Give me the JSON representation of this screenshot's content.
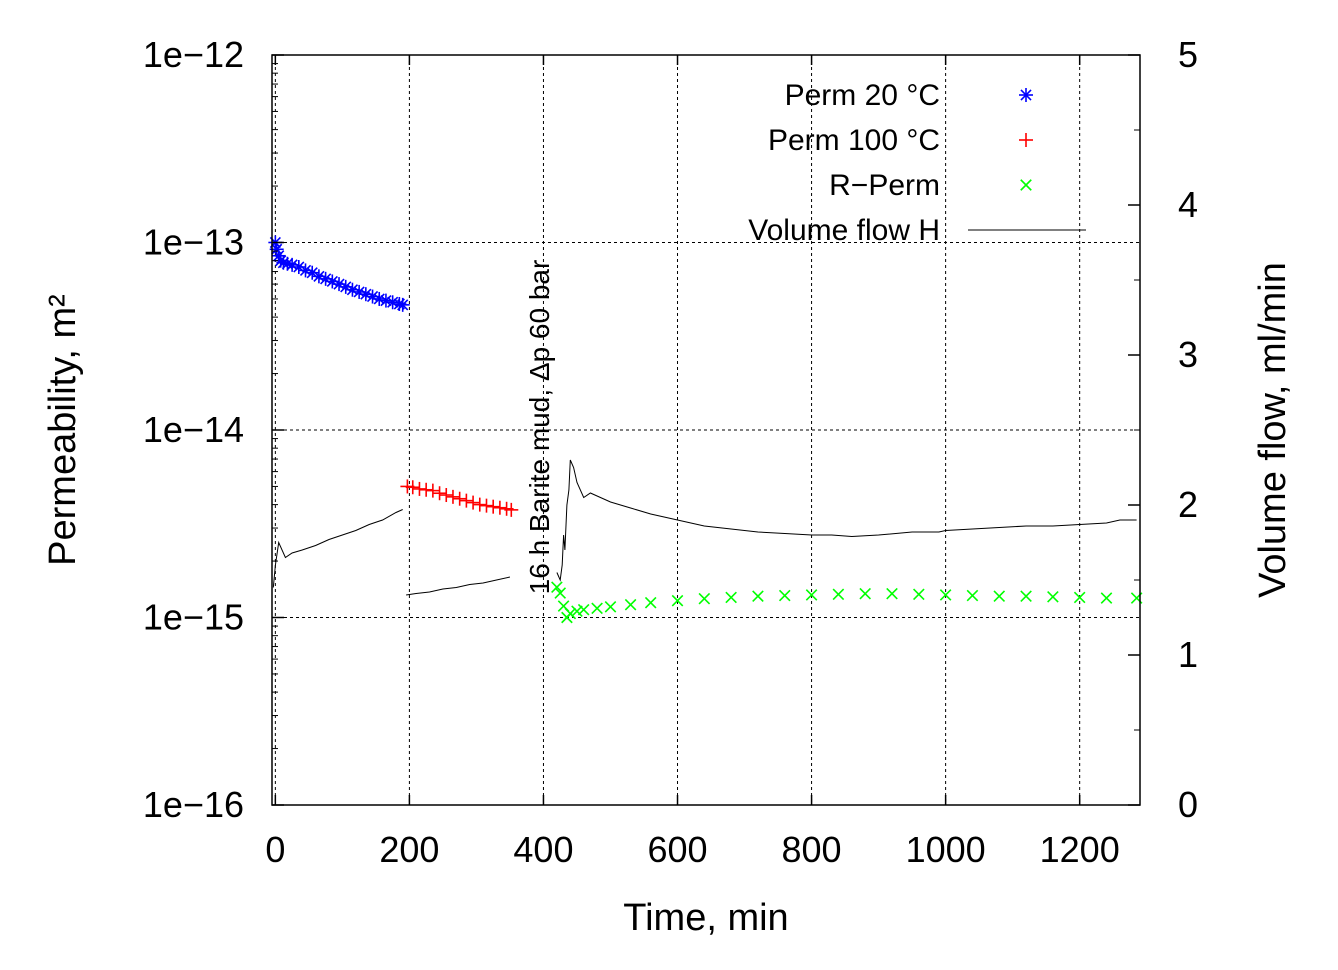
{
  "chart_data": {
    "type": "scatter",
    "xlabel": "Time, min",
    "ylabel": "Permeability, m²",
    "y2label": "Volume flow, ml/min",
    "xlim": [
      -5,
      1290
    ],
    "ylim_log10": [
      -16,
      -12
    ],
    "y2lim": [
      0,
      5
    ],
    "x_ticks": [
      0,
      200,
      400,
      600,
      800,
      1000,
      1200
    ],
    "x_tick_labels": [
      "0",
      "200",
      "400",
      "600",
      "800",
      "1000",
      "1200"
    ],
    "y_ticks_log10": [
      -16,
      -15,
      -14,
      -13,
      -12
    ],
    "y_tick_labels": [
      "1e−16",
      "1e−15",
      "1e−14",
      "1e−13",
      "1e−12"
    ],
    "y2_ticks": [
      0,
      1,
      2,
      3,
      4,
      5
    ],
    "y2_tick_labels": [
      "0",
      "1",
      "2",
      "3",
      "4",
      "5"
    ],
    "grid": true,
    "legend_position": "top-right",
    "annotation": "16 h Barite mud, Δp 60 bar",
    "series": [
      {
        "name": "Perm 20 °C",
        "marker": "asterisk",
        "color": "#0000ff",
        "axis": "left",
        "x": [
          0,
          2,
          5,
          8,
          12,
          18,
          25,
          35,
          45,
          55,
          65,
          75,
          85,
          95,
          105,
          115,
          125,
          135,
          145,
          155,
          165,
          175,
          185,
          190
        ],
        "y": [
          1e-13,
          9.2e-14,
          8.5e-14,
          8e-14,
          7.8e-14,
          7.7e-14,
          7.6e-14,
          7.4e-14,
          7.1e-14,
          6.9e-14,
          6.6e-14,
          6.4e-14,
          6.2e-14,
          6e-14,
          5.8e-14,
          5.6e-14,
          5.45e-14,
          5.3e-14,
          5.15e-14,
          5e-14,
          4.9e-14,
          4.8e-14,
          4.7e-14,
          4.65e-14
        ]
      },
      {
        "name": "Perm 100 °C",
        "marker": "plus",
        "color": "#ff0000",
        "axis": "left",
        "x": [
          197,
          205,
          215,
          225,
          235,
          245,
          255,
          265,
          275,
          285,
          295,
          305,
          315,
          325,
          335,
          345,
          352
        ],
        "y": [
          5e-15,
          4.95e-15,
          4.85e-15,
          4.8e-15,
          4.75e-15,
          4.6e-15,
          4.5e-15,
          4.4e-15,
          4.3e-15,
          4.2e-15,
          4.1e-15,
          4e-15,
          3.95e-15,
          3.9e-15,
          3.85e-15,
          3.8e-15,
          3.75e-15
        ]
      },
      {
        "name": "R−Perm",
        "marker": "cross",
        "color": "#00ff00",
        "axis": "left",
        "x": [
          420,
          425,
          430,
          435,
          440,
          450,
          460,
          480,
          500,
          530,
          560,
          600,
          640,
          680,
          720,
          760,
          800,
          840,
          880,
          920,
          960,
          1000,
          1040,
          1080,
          1120,
          1160,
          1200,
          1240,
          1285
        ],
        "y": [
          1.45e-15,
          1.35e-15,
          1.15e-15,
          1e-15,
          1.05e-15,
          1.08e-15,
          1.1e-15,
          1.12e-15,
          1.14e-15,
          1.17e-15,
          1.2e-15,
          1.23e-15,
          1.26e-15,
          1.28e-15,
          1.3e-15,
          1.31e-15,
          1.32e-15,
          1.33e-15,
          1.34e-15,
          1.34e-15,
          1.33e-15,
          1.32e-15,
          1.31e-15,
          1.3e-15,
          1.3e-15,
          1.29e-15,
          1.28e-15,
          1.27e-15,
          1.27e-15
        ]
      },
      {
        "name": "Volume flow H",
        "marker": "line",
        "color": "#000000",
        "axis": "right",
        "segments": [
          {
            "x": [
              -3,
              0,
              5,
              15,
              25,
              40,
              60,
              80,
              100,
              120,
              140,
              160,
              180,
              190
            ],
            "y": [
              1.45,
              1.6,
              1.75,
              1.65,
              1.68,
              1.7,
              1.73,
              1.77,
              1.8,
              1.83,
              1.87,
              1.9,
              1.95,
              1.97
            ]
          },
          {
            "x": [
              195,
              210,
              230,
              250,
              270,
              290,
              310,
              330,
              350
            ],
            "y": [
              1.4,
              1.41,
              1.42,
              1.44,
              1.45,
              1.47,
              1.48,
              1.5,
              1.52
            ]
          },
          {
            "x": [
              420,
              425,
              428,
              430,
              432,
              435,
              438,
              440,
              445,
              450,
              460,
              470,
              480,
              500,
              530,
              560,
              600,
              640,
              680,
              720,
              760,
              800,
              830,
              860,
              900,
              950,
              990,
              1000,
              1040,
              1080,
              1120,
              1160,
              1200,
              1240,
              1260,
              1285
            ],
            "y": [
              1.55,
              1.5,
              1.6,
              1.8,
              1.7,
              2.0,
              2.1,
              2.3,
              2.25,
              2.15,
              2.05,
              2.08,
              2.06,
              2.02,
              1.98,
              1.94,
              1.9,
              1.86,
              1.84,
              1.82,
              1.81,
              1.8,
              1.8,
              1.79,
              1.8,
              1.82,
              1.82,
              1.83,
              1.84,
              1.85,
              1.86,
              1.86,
              1.87,
              1.88,
              1.9,
              1.9
            ]
          }
        ]
      }
    ]
  }
}
